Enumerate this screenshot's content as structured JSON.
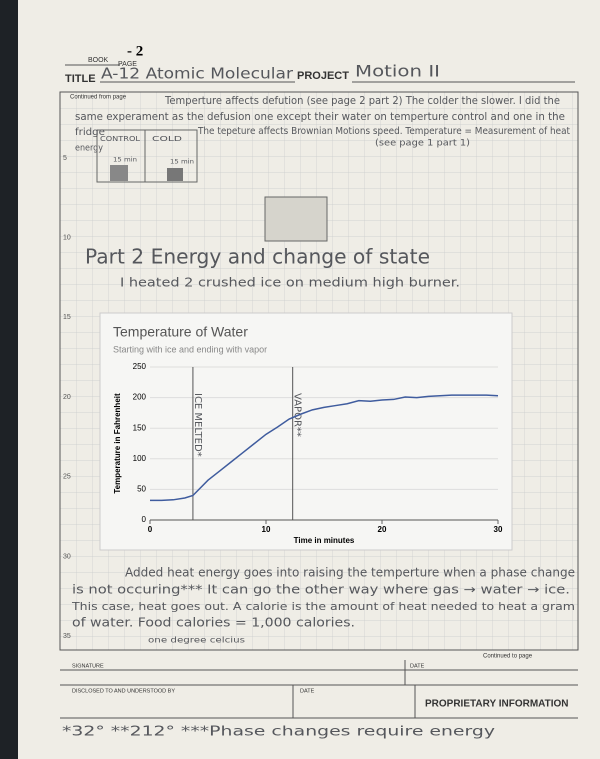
{
  "header": {
    "book_label": "BOOK",
    "page_label": "PAGE",
    "page_number": "- 2",
    "title_label": "TITLE",
    "title": "A-12 Atomic Molecular",
    "project_label": "PROJECT",
    "project": "Motion II",
    "continued_from": "Continued from page"
  },
  "line_numbers": [
    5,
    10,
    15,
    20,
    25,
    30,
    35
  ],
  "notes_top": [
    "Temperture affects defution (see page 2 part 2) The colder the slower. I did the",
    "same experament as the defusion one except their water on temperture control and one in the",
    "fridge",
    "The tepeture affects Brownian Motions speed. Temperature = Measurement of heat",
    "energy",
    "(see page 1 part 1)"
  ],
  "sketch": {
    "labels": [
      "CONTROL",
      "COLD",
      "15 min",
      "15 min"
    ]
  },
  "part2": {
    "heading": "Part 2 Energy and change of state",
    "text": "I heated 2 crushed ice on medium high burner."
  },
  "chart_data": {
    "type": "line",
    "title": "Temperature of Water",
    "subtitle": "Starting with ice and ending with vapor",
    "x_label": "Time in minutes",
    "y_label": "Temperature in Fahrenheit",
    "x": [
      0,
      1,
      2,
      3,
      3.7,
      5,
      6,
      7,
      8,
      9,
      10,
      11,
      12,
      13,
      14,
      15,
      16,
      17,
      18,
      19,
      20,
      21,
      22,
      23,
      24,
      25,
      26,
      27,
      28,
      29,
      30
    ],
    "values": [
      32,
      32,
      33,
      36,
      40,
      65,
      80,
      95,
      110,
      125,
      140,
      152,
      165,
      173,
      180,
      184,
      187,
      190,
      195,
      194,
      196,
      197,
      201,
      200,
      202,
      203,
      204,
      204,
      204,
      204,
      203
    ],
    "color": "#3f5c9e",
    "xlim": [
      0,
      30
    ],
    "xticks": [
      0,
      10,
      20,
      30
    ],
    "ylim": [
      0,
      250
    ],
    "yticks": [
      0,
      50,
      100,
      150,
      200,
      250
    ],
    "annotations": [
      {
        "text": "ICE MELTED*",
        "x": 3.7
      },
      {
        "text": "VAPOR**",
        "x": 12.3
      }
    ]
  },
  "notes_bottom": [
    "Added heat energy goes into raising the temperture when a phase change",
    "is not occuring*** It can go the other way where gas → water → ice.",
    "This case, heat goes out. A calorie is the amount of heat needed to heat a gram",
    "of water. Food calories = 1,000 calories.",
    "one degree celcius"
  ],
  "footer": {
    "continued_to": "Continued to page",
    "signature": "SIGNATURE",
    "date1": "DATE",
    "disclosed": "DISCLOSED TO AND UNDERSTOOD BY",
    "date2": "DATE",
    "proprietary": "PROPRIETARY INFORMATION",
    "footnote": "*32° **212° ***Phase changes require energy"
  }
}
